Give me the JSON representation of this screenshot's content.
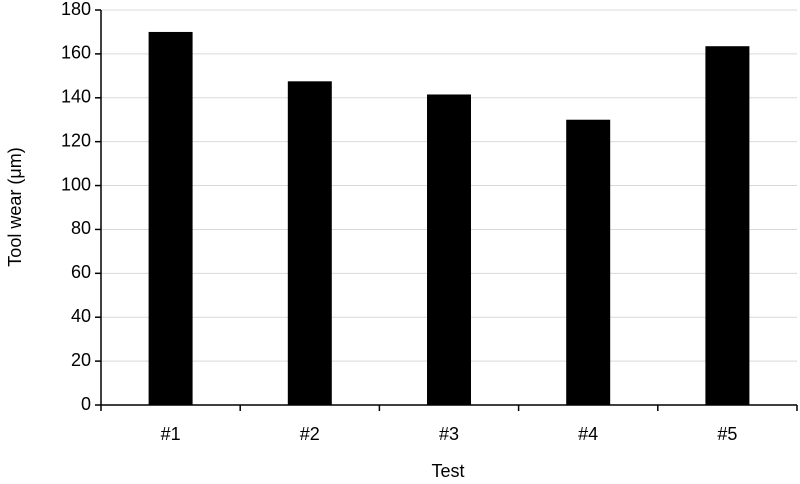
{
  "chart_data": {
    "type": "bar",
    "x_label": "Test",
    "y_label": "Tool wear (μm)",
    "categories": [
      "#1",
      "#2",
      "#3",
      "#4",
      "#5"
    ],
    "values": [
      170,
      147.5,
      141.5,
      130,
      163.5
    ],
    "color": "#000000",
    "ylim": [
      0,
      180
    ],
    "yticks": [
      0,
      20,
      40,
      60,
      80,
      100,
      120,
      140,
      160,
      180
    ],
    "grid": true
  }
}
